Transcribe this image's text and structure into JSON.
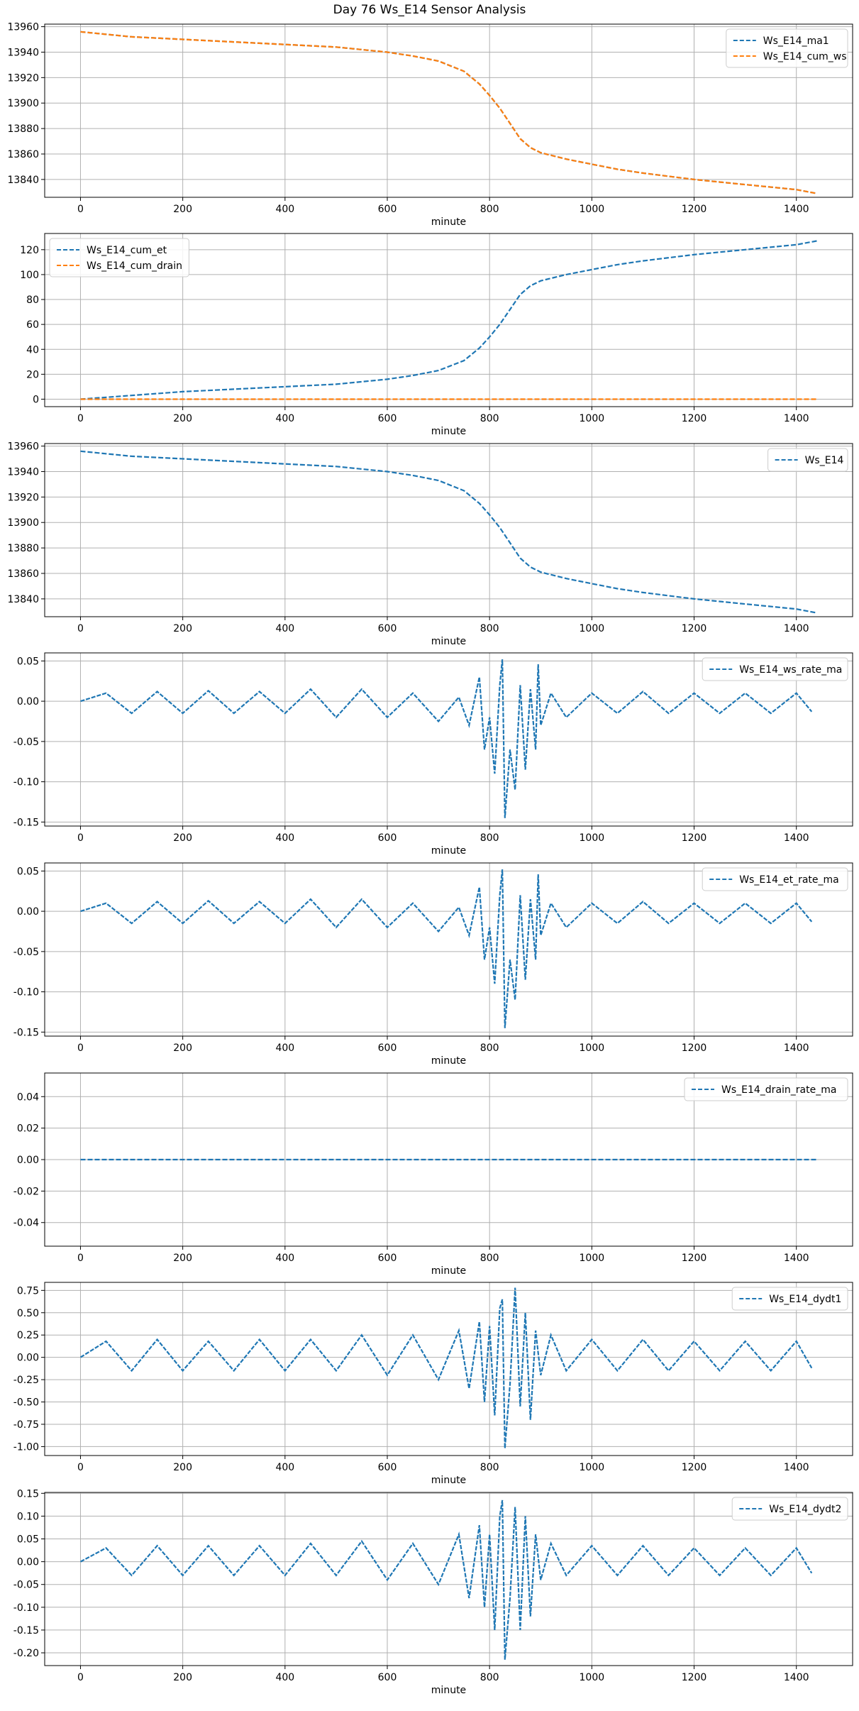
{
  "figure_title": "Day 76 Ws_E14 Sensor Analysis",
  "colors": {
    "blue": "#1f77b4",
    "orange": "#ff7f0e",
    "grid": "#b0b0b0"
  },
  "chart_data": [
    {
      "type": "line",
      "xlabel": "minute",
      "xlim": [
        -70,
        1510
      ],
      "xticks": [
        0,
        200,
        400,
        600,
        800,
        1000,
        1200,
        1400
      ],
      "ylim": [
        13826,
        13962
      ],
      "yticks": [
        13840,
        13860,
        13880,
        13900,
        13920,
        13940,
        13960
      ],
      "legend": "top-right",
      "series": [
        {
          "name": "Ws_E14_ma1",
          "color": "#1f77b4",
          "style": "dashed",
          "x": [
            0,
            100,
            200,
            300,
            400,
            500,
            600,
            650,
            700,
            750,
            780,
            800,
            820,
            840,
            860,
            880,
            900,
            950,
            1000,
            1050,
            1100,
            1200,
            1300,
            1400,
            1440
          ],
          "y": [
            13956,
            13952,
            13950,
            13948,
            13946,
            13944,
            13940,
            13937,
            13933,
            13925,
            13915,
            13906,
            13896,
            13884,
            13872,
            13865,
            13861,
            13856,
            13852,
            13848,
            13845,
            13840,
            13836,
            13832,
            13829
          ]
        },
        {
          "name": "Ws_E14_cum_ws",
          "color": "#ff7f0e",
          "style": "dashed",
          "x": [
            0,
            100,
            200,
            300,
            400,
            500,
            600,
            650,
            700,
            750,
            780,
            800,
            820,
            840,
            860,
            880,
            900,
            950,
            1000,
            1050,
            1100,
            1200,
            1300,
            1400,
            1440
          ],
          "y": [
            13956,
            13952,
            13950,
            13948,
            13946,
            13944,
            13940,
            13937,
            13933,
            13925,
            13915,
            13906,
            13896,
            13884,
            13872,
            13865,
            13861,
            13856,
            13852,
            13848,
            13845,
            13840,
            13836,
            13832,
            13829
          ]
        }
      ]
    },
    {
      "type": "line",
      "xlabel": "minute",
      "xlim": [
        -70,
        1510
      ],
      "xticks": [
        0,
        200,
        400,
        600,
        800,
        1000,
        1200,
        1400
      ],
      "ylim": [
        -6,
        133
      ],
      "yticks": [
        0,
        20,
        40,
        60,
        80,
        100,
        120
      ],
      "legend": "top-left",
      "series": [
        {
          "name": "Ws_E14_cum_et",
          "color": "#1f77b4",
          "style": "dashed",
          "x": [
            0,
            100,
            200,
            300,
            400,
            500,
            600,
            650,
            700,
            750,
            780,
            800,
            820,
            840,
            860,
            880,
            900,
            950,
            1000,
            1050,
            1100,
            1200,
            1300,
            1400,
            1440
          ],
          "y": [
            0,
            3,
            6,
            8,
            10,
            12,
            16,
            19,
            23,
            31,
            41,
            50,
            60,
            72,
            84,
            91,
            95,
            100,
            104,
            108,
            111,
            116,
            120,
            124,
            127
          ]
        },
        {
          "name": "Ws_E14_cum_drain",
          "color": "#ff7f0e",
          "style": "dashed",
          "x": [
            0,
            1440
          ],
          "y": [
            0,
            0
          ]
        }
      ]
    },
    {
      "type": "line",
      "xlabel": "minute",
      "xlim": [
        -70,
        1510
      ],
      "xticks": [
        0,
        200,
        400,
        600,
        800,
        1000,
        1200,
        1400
      ],
      "ylim": [
        13826,
        13962
      ],
      "yticks": [
        13840,
        13860,
        13880,
        13900,
        13920,
        13940,
        13960
      ],
      "legend": "top-right",
      "series": [
        {
          "name": "Ws_E14",
          "color": "#1f77b4",
          "style": "dashed",
          "x": [
            0,
            100,
            200,
            300,
            400,
            500,
            600,
            650,
            700,
            750,
            780,
            800,
            820,
            840,
            860,
            880,
            900,
            950,
            1000,
            1050,
            1100,
            1200,
            1300,
            1400,
            1440
          ],
          "y": [
            13956,
            13952,
            13950,
            13948,
            13946,
            13944,
            13940,
            13937,
            13933,
            13925,
            13915,
            13906,
            13896,
            13884,
            13872,
            13865,
            13861,
            13856,
            13852,
            13848,
            13845,
            13840,
            13836,
            13832,
            13829
          ]
        }
      ]
    },
    {
      "type": "line",
      "xlabel": "minute",
      "xlim": [
        -70,
        1510
      ],
      "xticks": [
        0,
        200,
        400,
        600,
        800,
        1000,
        1200,
        1400
      ],
      "ylim": [
        -0.155,
        0.06
      ],
      "yticks": [
        -0.15,
        -0.1,
        -0.05,
        0.0,
        0.05
      ],
      "legend": "top-right",
      "series": [
        {
          "name": "Ws_E14_ws_rate_ma",
          "color": "#1f77b4",
          "style": "dashed",
          "x": [
            0,
            50,
            100,
            150,
            200,
            250,
            300,
            350,
            400,
            450,
            500,
            550,
            600,
            650,
            700,
            740,
            760,
            780,
            790,
            800,
            810,
            820,
            825,
            830,
            840,
            850,
            860,
            870,
            880,
            890,
            895,
            900,
            920,
            950,
            1000,
            1050,
            1100,
            1150,
            1200,
            1250,
            1300,
            1350,
            1400,
            1430
          ],
          "y": [
            0,
            0.01,
            -0.015,
            0.012,
            -0.015,
            0.013,
            -0.015,
            0.012,
            -0.015,
            0.015,
            -0.02,
            0.015,
            -0.02,
            0.01,
            -0.025,
            0.005,
            -0.03,
            0.03,
            -0.06,
            -0.02,
            -0.09,
            0.02,
            0.052,
            -0.145,
            -0.06,
            -0.11,
            0.02,
            -0.085,
            0.015,
            -0.06,
            0.046,
            -0.03,
            0.01,
            -0.02,
            0.01,
            -0.015,
            0.012,
            -0.015,
            0.01,
            -0.015,
            0.01,
            -0.015,
            0.01,
            -0.013
          ]
        }
      ]
    },
    {
      "type": "line",
      "xlabel": "minute",
      "xlim": [
        -70,
        1510
      ],
      "xticks": [
        0,
        200,
        400,
        600,
        800,
        1000,
        1200,
        1400
      ],
      "ylim": [
        -0.155,
        0.06
      ],
      "yticks": [
        -0.15,
        -0.1,
        -0.05,
        0.0,
        0.05
      ],
      "legend": "top-right",
      "series": [
        {
          "name": "Ws_E14_et_rate_ma",
          "color": "#1f77b4",
          "style": "dashed",
          "x": [
            0,
            50,
            100,
            150,
            200,
            250,
            300,
            350,
            400,
            450,
            500,
            550,
            600,
            650,
            700,
            740,
            760,
            780,
            790,
            800,
            810,
            820,
            825,
            830,
            840,
            850,
            860,
            870,
            880,
            890,
            895,
            900,
            920,
            950,
            1000,
            1050,
            1100,
            1150,
            1200,
            1250,
            1300,
            1350,
            1400,
            1430
          ],
          "y": [
            0,
            0.01,
            -0.015,
            0.012,
            -0.015,
            0.013,
            -0.015,
            0.012,
            -0.015,
            0.015,
            -0.02,
            0.015,
            -0.02,
            0.01,
            -0.025,
            0.005,
            -0.03,
            0.03,
            -0.06,
            -0.02,
            -0.09,
            0.02,
            0.052,
            -0.145,
            -0.06,
            -0.11,
            0.02,
            -0.085,
            0.015,
            -0.06,
            0.046,
            -0.03,
            0.01,
            -0.02,
            0.01,
            -0.015,
            0.012,
            -0.015,
            0.01,
            -0.015,
            0.01,
            -0.015,
            0.01,
            -0.013
          ]
        }
      ]
    },
    {
      "type": "line",
      "xlabel": "minute",
      "xlim": [
        -70,
        1510
      ],
      "xticks": [
        0,
        200,
        400,
        600,
        800,
        1000,
        1200,
        1400
      ],
      "ylim": [
        -0.055,
        0.055
      ],
      "yticks": [
        -0.04,
        -0.02,
        0.0,
        0.02,
        0.04
      ],
      "legend": "top-right",
      "series": [
        {
          "name": "Ws_E14_drain_rate_ma",
          "color": "#1f77b4",
          "style": "dashed",
          "x": [
            0,
            1440
          ],
          "y": [
            0,
            0
          ]
        }
      ]
    },
    {
      "type": "line",
      "xlabel": "minute",
      "xlim": [
        -70,
        1510
      ],
      "xticks": [
        0,
        200,
        400,
        600,
        800,
        1000,
        1200,
        1400
      ],
      "ylim": [
        -1.1,
        0.84
      ],
      "yticks": [
        -1.0,
        -0.75,
        -0.5,
        -0.25,
        0.0,
        0.25,
        0.5,
        0.75
      ],
      "legend": "top-right",
      "series": [
        {
          "name": "Ws_E14_dydt1",
          "color": "#1f77b4",
          "style": "dashed",
          "x": [
            0,
            50,
            100,
            150,
            200,
            250,
            300,
            350,
            400,
            450,
            500,
            550,
            600,
            650,
            700,
            740,
            760,
            780,
            790,
            800,
            810,
            820,
            825,
            830,
            840,
            850,
            860,
            870,
            880,
            890,
            900,
            920,
            950,
            1000,
            1050,
            1100,
            1150,
            1200,
            1250,
            1300,
            1350,
            1400,
            1430
          ],
          "y": [
            0,
            0.18,
            -0.15,
            0.2,
            -0.15,
            0.18,
            -0.15,
            0.2,
            -0.15,
            0.2,
            -0.15,
            0.25,
            -0.2,
            0.25,
            -0.25,
            0.3,
            -0.35,
            0.4,
            -0.5,
            0.35,
            -0.65,
            0.55,
            0.65,
            -1.02,
            -0.3,
            0.78,
            -0.55,
            0.5,
            -0.7,
            0.3,
            -0.2,
            0.25,
            -0.15,
            0.2,
            -0.15,
            0.2,
            -0.15,
            0.18,
            -0.15,
            0.18,
            -0.15,
            0.18,
            -0.12
          ]
        }
      ]
    },
    {
      "type": "line",
      "xlabel": "minute",
      "xlim": [
        -70,
        1510
      ],
      "xticks": [
        0,
        200,
        400,
        600,
        800,
        1000,
        1200,
        1400
      ],
      "ylim": [
        -0.228,
        0.152
      ],
      "yticks": [
        -0.2,
        -0.15,
        -0.1,
        -0.05,
        0.0,
        0.05,
        0.1,
        0.15
      ],
      "legend": "top-right",
      "series": [
        {
          "name": "Ws_E14_dydt2",
          "color": "#1f77b4",
          "style": "dashed",
          "x": [
            0,
            50,
            100,
            150,
            200,
            250,
            300,
            350,
            400,
            450,
            500,
            550,
            600,
            650,
            700,
            740,
            760,
            780,
            790,
            800,
            810,
            820,
            825,
            830,
            840,
            850,
            860,
            870,
            880,
            890,
            900,
            920,
            950,
            1000,
            1050,
            1100,
            1150,
            1200,
            1250,
            1300,
            1350,
            1400,
            1430
          ],
          "y": [
            0,
            0.03,
            -0.03,
            0.035,
            -0.03,
            0.035,
            -0.03,
            0.035,
            -0.03,
            0.04,
            -0.03,
            0.045,
            -0.04,
            0.04,
            -0.05,
            0.06,
            -0.08,
            0.08,
            -0.1,
            0.06,
            -0.15,
            0.1,
            0.135,
            -0.215,
            -0.08,
            0.12,
            -0.15,
            0.1,
            -0.12,
            0.06,
            -0.04,
            0.04,
            -0.03,
            0.035,
            -0.03,
            0.035,
            -0.03,
            0.03,
            -0.03,
            0.03,
            -0.03,
            0.03,
            -0.025
          ]
        }
      ]
    }
  ]
}
